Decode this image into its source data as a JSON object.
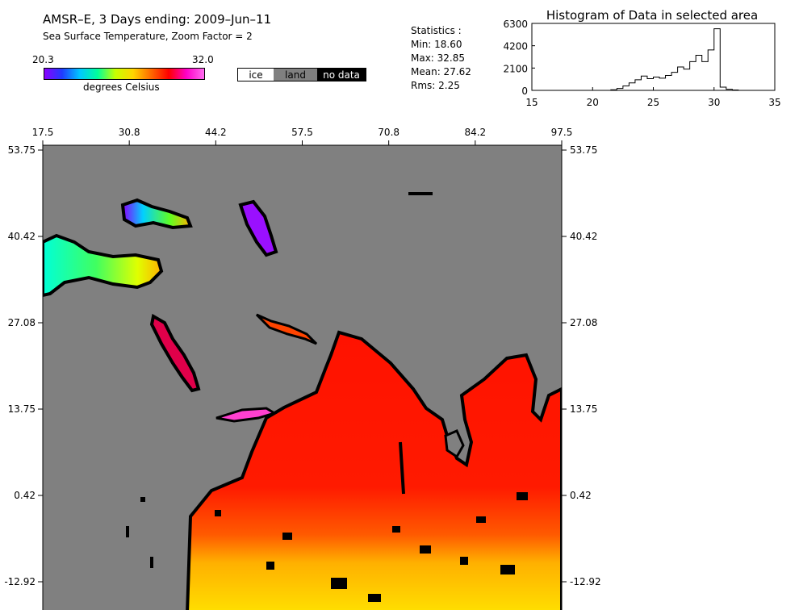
{
  "header": {
    "title": "AMSR–E, 3 Days ending: 2009–Jun–11",
    "subtitle": "Sea Surface Temperature,  Zoom Factor = 2"
  },
  "colorbar": {
    "min_label": "20.3",
    "max_label": "32.0",
    "unit_label": "degrees Celsius",
    "stops": [
      "#8a00ff",
      "#1f3cff",
      "#00c8ff",
      "#00ff9a",
      "#c8ff00",
      "#ffd400",
      "#ff6a00",
      "#ff0000",
      "#ff00c8",
      "#ff6cf0"
    ]
  },
  "legend": {
    "ice": "ice",
    "land": "land",
    "no_data": "no data"
  },
  "stats": {
    "heading": "Statistics :",
    "min": "Min: 18.60",
    "max": "Max: 32.85",
    "mean": "Mean: 27.62",
    "rms": "Rms:    2.25"
  },
  "chart_data": {
    "type": "bar",
    "title": "Histogram of Data in selected area",
    "xlim": [
      15,
      35
    ],
    "ylim": [
      0,
      6300
    ],
    "x_ticks": [
      "15",
      "20",
      "25",
      "30",
      "35"
    ],
    "y_ticks": [
      "0",
      "2100",
      "4200",
      "6300"
    ],
    "bin_width": 0.5,
    "x": [
      21.5,
      22,
      22.5,
      23,
      23.5,
      24,
      24.5,
      25,
      25.5,
      26,
      26.5,
      27,
      27.5,
      28,
      28.5,
      29,
      29.5,
      30,
      30.5,
      31,
      31.5
    ],
    "values": [
      60,
      180,
      420,
      700,
      1000,
      1350,
      1100,
      1250,
      1150,
      1400,
      1700,
      2200,
      2000,
      2700,
      3300,
      2700,
      3800,
      5800,
      300,
      100,
      40
    ]
  },
  "map": {
    "lon_ticks": [
      "17.5",
      "30.8",
      "44.2",
      "57.5",
      "70.8",
      "84.2",
      "97.5"
    ],
    "lat_ticks": [
      "53.75",
      "40.42",
      "27.08",
      "13.75",
      "0.42",
      "-12.92"
    ]
  }
}
